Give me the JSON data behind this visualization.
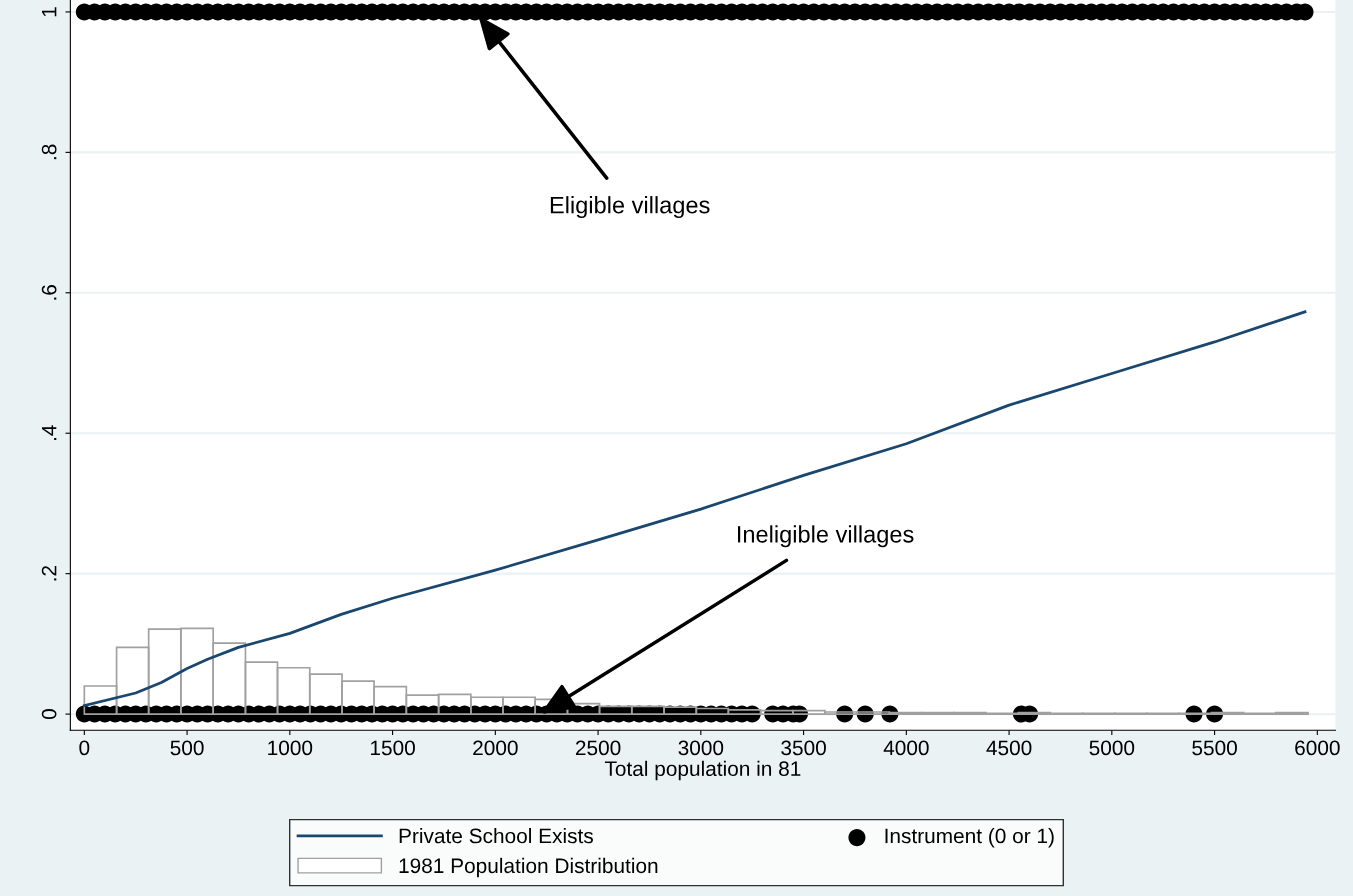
{
  "chart_data": {
    "type": "line",
    "xlabel": "Total population in 81",
    "xlim": [
      -68,
      6088
    ],
    "ylim": [
      -0.023,
      1.017
    ],
    "xticks": [
      0,
      500,
      1000,
      1500,
      2000,
      2500,
      3000,
      3500,
      4000,
      4500,
      5000,
      5500,
      6000
    ],
    "yticks": [
      {
        "value": 0,
        "label": "0"
      },
      {
        "value": 0.2,
        "label": ".2"
      },
      {
        "value": 0.4,
        "label": ".4"
      },
      {
        "value": 0.6,
        "label": ".6"
      },
      {
        "value": 0.8,
        "label": ".8"
      },
      {
        "value": 1,
        "label": "1"
      }
    ],
    "grid": "y",
    "legend": "bottom",
    "series": [
      {
        "name": "Private School Exists",
        "color": "#1a476f",
        "x": [
          0,
          250,
          375,
          500,
          600,
          750,
          1000,
          1250,
          1500,
          2000,
          2500,
          3000,
          3500,
          4000,
          4500,
          5000,
          5500,
          5940
        ],
        "values": [
          0.012,
          0.03,
          0.045,
          0.065,
          0.078,
          0.095,
          0.115,
          0.142,
          0.165,
          0.205,
          0.248,
          0.292,
          0.34,
          0.385,
          0.44,
          0.485,
          0.53,
          0.573
        ]
      },
      {
        "type": "histogram",
        "name": "1981 Population Distribution",
        "color": "#a0a0a0",
        "bins": [
          0,
          157,
          313,
          470,
          627,
          784,
          940,
          1097,
          1254,
          1410,
          1567,
          1724,
          1881,
          2037,
          2194,
          2351,
          2507,
          2664,
          2821,
          2978,
          3134,
          3291,
          3448,
          3604,
          3761,
          3918,
          4075,
          4231,
          4388,
          4545,
          4701,
          4858,
          5015,
          5172,
          5328,
          5485,
          5642,
          5798,
          5955
        ],
        "values": [
          0.04,
          0.095,
          0.121,
          0.122,
          0.101,
          0.074,
          0.066,
          0.057,
          0.047,
          0.039,
          0.027,
          0.028,
          0.024,
          0.024,
          0.021,
          0.015,
          0.011,
          0.011,
          0.01,
          0.008,
          0.006,
          0.005,
          0.005,
          0.003,
          0.003,
          0.002,
          0.002,
          0.002,
          0.001,
          0.002,
          0.001,
          0.001,
          0.001,
          0.001,
          0.001,
          0.002,
          0.001,
          0.002
        ]
      },
      {
        "type": "scatter",
        "name": "Instrument (0 or 1)",
        "color": "#000000",
        "marker": "circle",
        "x": [
          0,
          50,
          100,
          150,
          200,
          250,
          300,
          350,
          400,
          450,
          500,
          550,
          600,
          650,
          700,
          750,
          800,
          850,
          900,
          950,
          1000,
          1050,
          1100,
          1150,
          1200,
          1250,
          1300,
          1350,
          1400,
          1450,
          1500,
          1550,
          1600,
          1650,
          1700,
          1750,
          1800,
          1850,
          1900,
          1950,
          2000,
          2050,
          2100,
          2150,
          2200,
          2250,
          2300,
          2350,
          2400,
          2450,
          2500,
          2550,
          2600,
          2650,
          2700,
          2750,
          2800,
          2850,
          2900,
          2950,
          3000,
          3050,
          3100,
          3150,
          3200,
          3250,
          3350,
          3400,
          3450,
          3480,
          3700,
          3800,
          3920,
          4560,
          4600,
          5400,
          5500,
          0,
          50,
          100,
          150,
          200,
          250,
          300,
          350,
          400,
          450,
          500,
          550,
          600,
          650,
          700,
          750,
          800,
          850,
          900,
          950,
          1000,
          1050,
          1100,
          1150,
          1200,
          1250,
          1300,
          1350,
          1400,
          1450,
          1500,
          1550,
          1600,
          1650,
          1700,
          1750,
          1800,
          1850,
          1900,
          1950,
          2000,
          2050,
          2100,
          2150,
          2200,
          2250,
          2300,
          2350,
          2400,
          2450,
          2500,
          2550,
          2600,
          2650,
          2700,
          2750,
          2800,
          2850,
          2900,
          2950,
          3000,
          3050,
          3100,
          3150,
          3200,
          3250,
          3300,
          3350,
          3400,
          3450,
          3500,
          3550,
          3600,
          3650,
          3700,
          3750,
          3800,
          3850,
          3900,
          3950,
          4000,
          4050,
          4100,
          4150,
          4200,
          4250,
          4300,
          4350,
          4400,
          4450,
          4500,
          4550,
          4600,
          4650,
          4700,
          4750,
          4800,
          4850,
          4900,
          4950,
          5000,
          5050,
          5100,
          5150,
          5200,
          5250,
          5300,
          5350,
          5400,
          5450,
          5500,
          5550,
          5600,
          5650,
          5700,
          5750,
          5800,
          5850,
          5900,
          5940
        ],
        "values": [
          0,
          0,
          0,
          0,
          0,
          0,
          0,
          0,
          0,
          0,
          0,
          0,
          0,
          0,
          0,
          0,
          0,
          0,
          0,
          0,
          0,
          0,
          0,
          0,
          0,
          0,
          0,
          0,
          0,
          0,
          0,
          0,
          0,
          0,
          0,
          0,
          0,
          0,
          0,
          0,
          0,
          0,
          0,
          0,
          0,
          0,
          0,
          0,
          0,
          0,
          0,
          0,
          0,
          0,
          0,
          0,
          0,
          0,
          0,
          0,
          0,
          0,
          0,
          0,
          0,
          0,
          0,
          0,
          0,
          0,
          0,
          0,
          0,
          0,
          0,
          0,
          0,
          1,
          1,
          1,
          1,
          1,
          1,
          1,
          1,
          1,
          1,
          1,
          1,
          1,
          1,
          1,
          1,
          1,
          1,
          1,
          1,
          1,
          1,
          1,
          1,
          1,
          1,
          1,
          1,
          1,
          1,
          1,
          1,
          1,
          1,
          1,
          1,
          1,
          1,
          1,
          1,
          1,
          1,
          1,
          1,
          1,
          1,
          1,
          1,
          1,
          1,
          1,
          1,
          1,
          1,
          1,
          1,
          1,
          1,
          1,
          1,
          1,
          1,
          1,
          1,
          1,
          1,
          1,
          1,
          1,
          1,
          1,
          1,
          1,
          1,
          1,
          1,
          1,
          1,
          1,
          1,
          1,
          1,
          1,
          1,
          1,
          1,
          1,
          1,
          1,
          1,
          1,
          1,
          1,
          1,
          1,
          1,
          1,
          1,
          1,
          1,
          1,
          1,
          1,
          1,
          1,
          1,
          1,
          1,
          1,
          1,
          1,
          1,
          1,
          1,
          1,
          1,
          1,
          1,
          1,
          1
        ]
      }
    ],
    "annotations": [
      {
        "text": "Eligible villages",
        "x": 1917,
        "y": 0.995
      },
      {
        "text": "Ineligible villages",
        "x": 2219,
        "y": 0.0
      }
    ]
  }
}
